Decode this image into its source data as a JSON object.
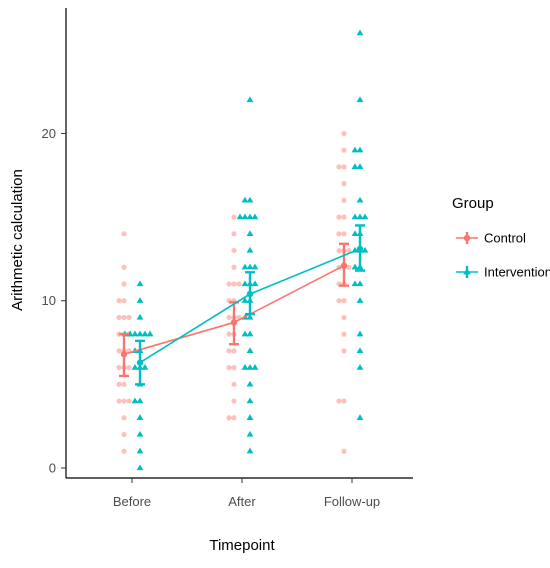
{
  "chart_data": {
    "type": "scatter",
    "xlabel": "Timepoint",
    "ylabel": "Arithmetic calculation",
    "categories": [
      "Before",
      "After",
      "Follow-up"
    ],
    "ylim": [
      -0.6,
      27.5
    ],
    "yticks": [
      0,
      10,
      20
    ],
    "grid": false,
    "legend": {
      "title": "Group",
      "placement": "right",
      "entries": [
        "Control",
        "Intervention"
      ]
    },
    "series": [
      {
        "name": "Control",
        "color": "#F8766D",
        "marker": "circle",
        "means": [
          6.8,
          8.7,
          12.1
        ],
        "ci_low": [
          5.5,
          7.4,
          10.9
        ],
        "ci_high": [
          8.0,
          9.9,
          13.4
        ],
        "points": [
          [
            14,
            12,
            11,
            10,
            10,
            9,
            9,
            9,
            8,
            8,
            8,
            7,
            7,
            7,
            6,
            6,
            6,
            5,
            5,
            4,
            4,
            4,
            3,
            2,
            1
          ],
          [
            15,
            14,
            13,
            12,
            11,
            11,
            11,
            10,
            10,
            9,
            9,
            9,
            8,
            8,
            7,
            7,
            6,
            6,
            5,
            4,
            3,
            3
          ],
          [
            20,
            19,
            18,
            18,
            17,
            16,
            15,
            15,
            14,
            14,
            13,
            13,
            13,
            12,
            12,
            12,
            11,
            11,
            10,
            10,
            9,
            8,
            7,
            4,
            4,
            1
          ]
        ]
      },
      {
        "name": "Intervention",
        "color": "#00BFC4",
        "marker": "triangle",
        "means": [
          6.3,
          10.4,
          13.1
        ],
        "ci_low": [
          5.0,
          9.2,
          11.8
        ],
        "ci_high": [
          7.6,
          11.7,
          14.5
        ],
        "points": [
          [
            11,
            10,
            9,
            8,
            8,
            8,
            8,
            8,
            8,
            7,
            7,
            6,
            6,
            6,
            5,
            4,
            4,
            3,
            2,
            1,
            0
          ],
          [
            22,
            16,
            16,
            15,
            15,
            15,
            15,
            14,
            13,
            12,
            12,
            12,
            11,
            11,
            11,
            10,
            10,
            9,
            9,
            8,
            8,
            7,
            6,
            6,
            6,
            5,
            4,
            3,
            2,
            1
          ],
          [
            26,
            22,
            19,
            19,
            18,
            18,
            16,
            15,
            15,
            15,
            14,
            14,
            13,
            13,
            13,
            12,
            12,
            11,
            11,
            10,
            8,
            7,
            6,
            3
          ]
        ]
      }
    ]
  }
}
